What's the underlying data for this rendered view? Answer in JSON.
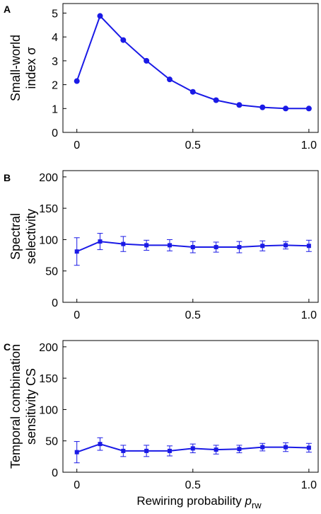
{
  "chart_data": [
    {
      "panel": "A",
      "type": "line",
      "ylabel_lines": [
        "Small-world",
        "index σ"
      ],
      "x": [
        0,
        0.1,
        0.2,
        0.3,
        0.4,
        0.5,
        0.6,
        0.7,
        0.8,
        0.9,
        1.0
      ],
      "series": [
        {
          "values": [
            2.15,
            4.88,
            3.87,
            3.0,
            2.22,
            1.7,
            1.35,
            1.15,
            1.05,
            1.0,
            1.0
          ]
        }
      ],
      "xlim": [
        -0.06,
        1.04
      ],
      "ylim": [
        0,
        5.4
      ],
      "xticks": [
        0,
        0.5,
        1.0
      ],
      "xtick_labels": [
        "0",
        "0.5",
        "1.0"
      ],
      "yticks": [
        0,
        1,
        2,
        3,
        4,
        5
      ],
      "ytick_labels": [
        "0",
        "1",
        "2",
        "3",
        "4",
        "5"
      ],
      "marker": "circle",
      "grid": false
    },
    {
      "panel": "B",
      "type": "line",
      "ylabel_lines": [
        "Spectral",
        "selectivity"
      ],
      "x": [
        0,
        0.1,
        0.2,
        0.3,
        0.4,
        0.5,
        0.6,
        0.7,
        0.8,
        0.9,
        1.0
      ],
      "series": [
        {
          "values": [
            81,
            97,
            93,
            91,
            91,
            88,
            88,
            88,
            90,
            91,
            90
          ],
          "error": [
            22,
            13,
            12,
            8,
            9,
            9,
            8,
            9,
            8,
            6,
            9
          ]
        }
      ],
      "xlim": [
        -0.06,
        1.04
      ],
      "ylim": [
        0,
        210
      ],
      "xticks": [
        0,
        0.5,
        1.0
      ],
      "xtick_labels": [
        "0",
        "0.5",
        "1.0"
      ],
      "yticks": [
        0,
        50,
        100,
        150,
        200
      ],
      "ytick_labels": [
        "0",
        "50",
        "100",
        "150",
        "200"
      ],
      "marker": "square",
      "grid": false
    },
    {
      "panel": "C",
      "type": "line",
      "ylabel_lines": [
        "Temporal combination",
        "sensitivity CS"
      ],
      "xlabel_main": "Rewiring probability ",
      "xlabel_var": "p",
      "xlabel_sub": "rw",
      "x": [
        0,
        0.1,
        0.2,
        0.3,
        0.4,
        0.5,
        0.6,
        0.7,
        0.8,
        0.9,
        1.0
      ],
      "series": [
        {
          "values": [
            32,
            45,
            34,
            34,
            34,
            38,
            36,
            37,
            40,
            40,
            39
          ],
          "error": [
            17,
            10,
            9,
            9,
            8,
            7,
            7,
            6,
            6,
            7,
            7
          ]
        }
      ],
      "xlim": [
        -0.06,
        1.04
      ],
      "ylim": [
        0,
        210
      ],
      "xticks": [
        0,
        0.5,
        1.0
      ],
      "xtick_labels": [
        "0",
        "0.5",
        "1.0"
      ],
      "yticks": [
        0,
        50,
        100,
        150,
        200
      ],
      "ytick_labels": [
        "0",
        "50",
        "100",
        "150",
        "200"
      ],
      "marker": "square",
      "grid": false
    }
  ],
  "colors": {
    "series": "#1a1ae6",
    "axis": "#000000"
  }
}
